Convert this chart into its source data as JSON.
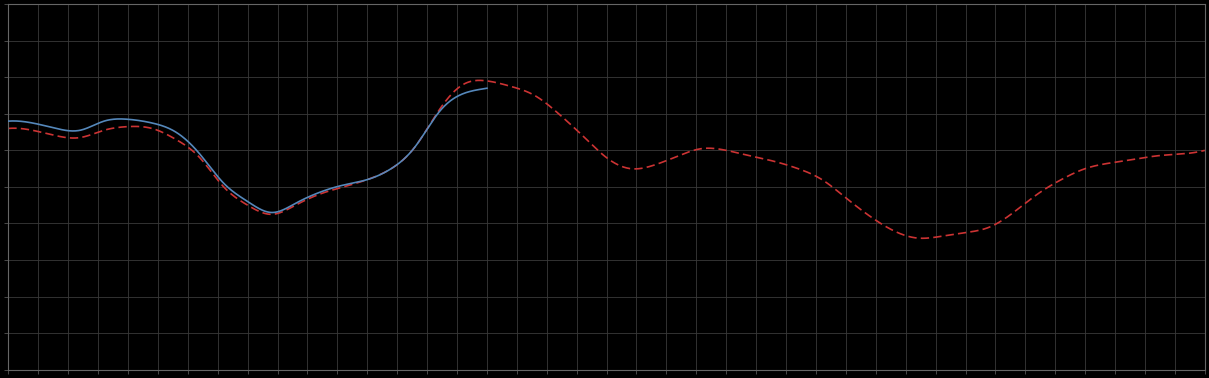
{
  "background_color": "#000000",
  "plot_bg_color": "#000000",
  "grid_color": "#3a3a3a",
  "line1_color": "#5588bb",
  "line2_color": "#cc3333",
  "line_width": 1.2,
  "figsize": [
    12.09,
    3.78
  ],
  "dpi": 100,
  "spine_color": "#666666",
  "tick_color": "#666666",
  "n_xgrid": 40,
  "n_ygrid": 10,
  "blue_x": [
    0,
    2,
    4,
    6,
    8,
    10,
    12,
    14,
    16,
    18,
    20,
    22,
    24,
    26,
    28,
    30,
    32,
    34,
    36,
    38,
    40
  ],
  "blue_y": [
    6.8,
    6.75,
    6.6,
    6.55,
    6.8,
    6.85,
    6.75,
    6.5,
    5.9,
    5.1,
    4.6,
    4.3,
    4.55,
    4.85,
    5.05,
    5.2,
    5.5,
    6.1,
    7.05,
    7.55,
    7.7
  ],
  "red_x": [
    0,
    2,
    4,
    6,
    8,
    10,
    12,
    14,
    16,
    18,
    20,
    22,
    24,
    26,
    28,
    30,
    32,
    34,
    36,
    38,
    40,
    42,
    44,
    46,
    48,
    50,
    52,
    54,
    56,
    58,
    60,
    62,
    64,
    66,
    68,
    70,
    72,
    74,
    76,
    78,
    80,
    82,
    84,
    86,
    88,
    90,
    92,
    94,
    96,
    98,
    100
  ],
  "red_y": [
    6.6,
    6.55,
    6.4,
    6.35,
    6.55,
    6.65,
    6.6,
    6.3,
    5.8,
    5.0,
    4.5,
    4.25,
    4.5,
    4.8,
    5.0,
    5.2,
    5.5,
    6.1,
    7.1,
    7.8,
    7.9,
    7.75,
    7.5,
    7.0,
    6.4,
    5.8,
    5.5,
    5.6,
    5.85,
    6.05,
    6.0,
    5.85,
    5.7,
    5.5,
    5.2,
    4.7,
    4.2,
    3.8,
    3.6,
    3.65,
    3.75,
    3.9,
    4.3,
    4.8,
    5.2,
    5.5,
    5.65,
    5.75,
    5.85,
    5.9,
    6.0
  ],
  "xlim": [
    0,
    100
  ],
  "ylim": [
    0,
    10
  ]
}
